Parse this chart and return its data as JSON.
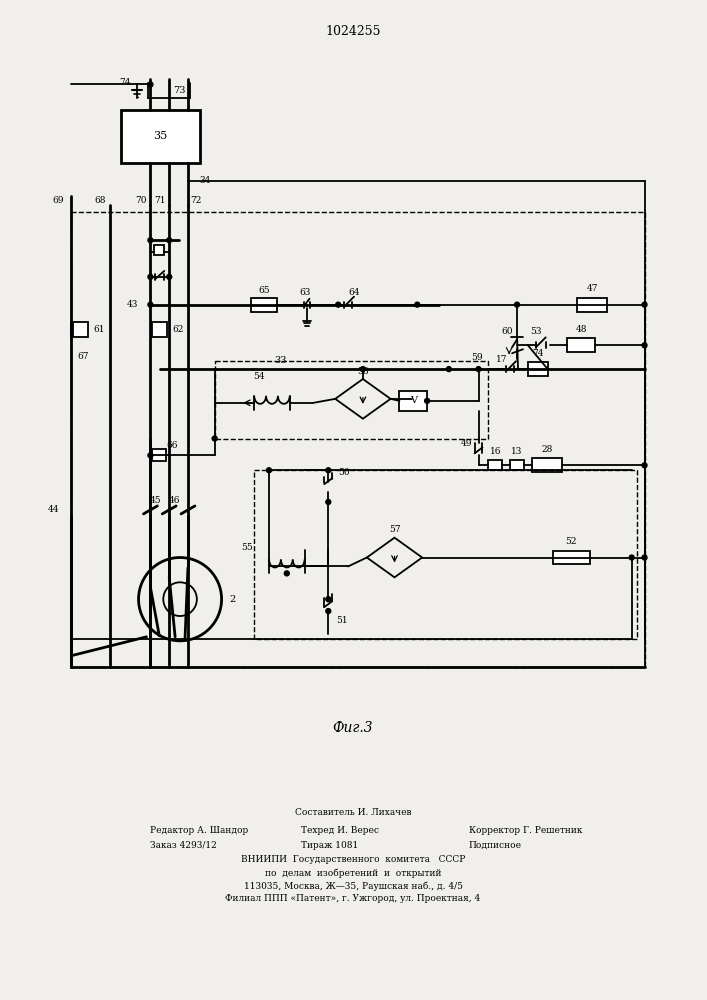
{
  "title": "1024255",
  "fig_label": "Фиг.3",
  "bg": "#f0efeb",
  "lw": 1.3,
  "footer": [
    [
      "center",
      353,
      815,
      "Составитель И. Лихачев",
      6.5
    ],
    [
      "left",
      148,
      833,
      "Редактор А. Шандор",
      6.5
    ],
    [
      "left",
      300,
      833,
      "Техред И. Верес",
      6.5
    ],
    [
      "left",
      470,
      833,
      "Корректор Г. Решетник",
      6.5
    ],
    [
      "left",
      148,
      848,
      "Заказ 4293/12",
      6.5
    ],
    [
      "left",
      300,
      848,
      "Тираж 1081",
      6.5
    ],
    [
      "left",
      470,
      848,
      "Подписное",
      6.5
    ],
    [
      "center",
      353,
      863,
      "ВНИИПИ  Государственного  комитета   СССР",
      6.5
    ],
    [
      "center",
      353,
      876,
      "по  делам  изобретений  и  открытий",
      6.5
    ],
    [
      "center",
      353,
      889,
      "113035, Москва, Ж—35, Раушская наб., д. 4/5",
      6.5
    ],
    [
      "center",
      353,
      902,
      "Филиал ППП «Патент», г. Ужгород, ул. Проектная, 4",
      6.5
    ]
  ]
}
